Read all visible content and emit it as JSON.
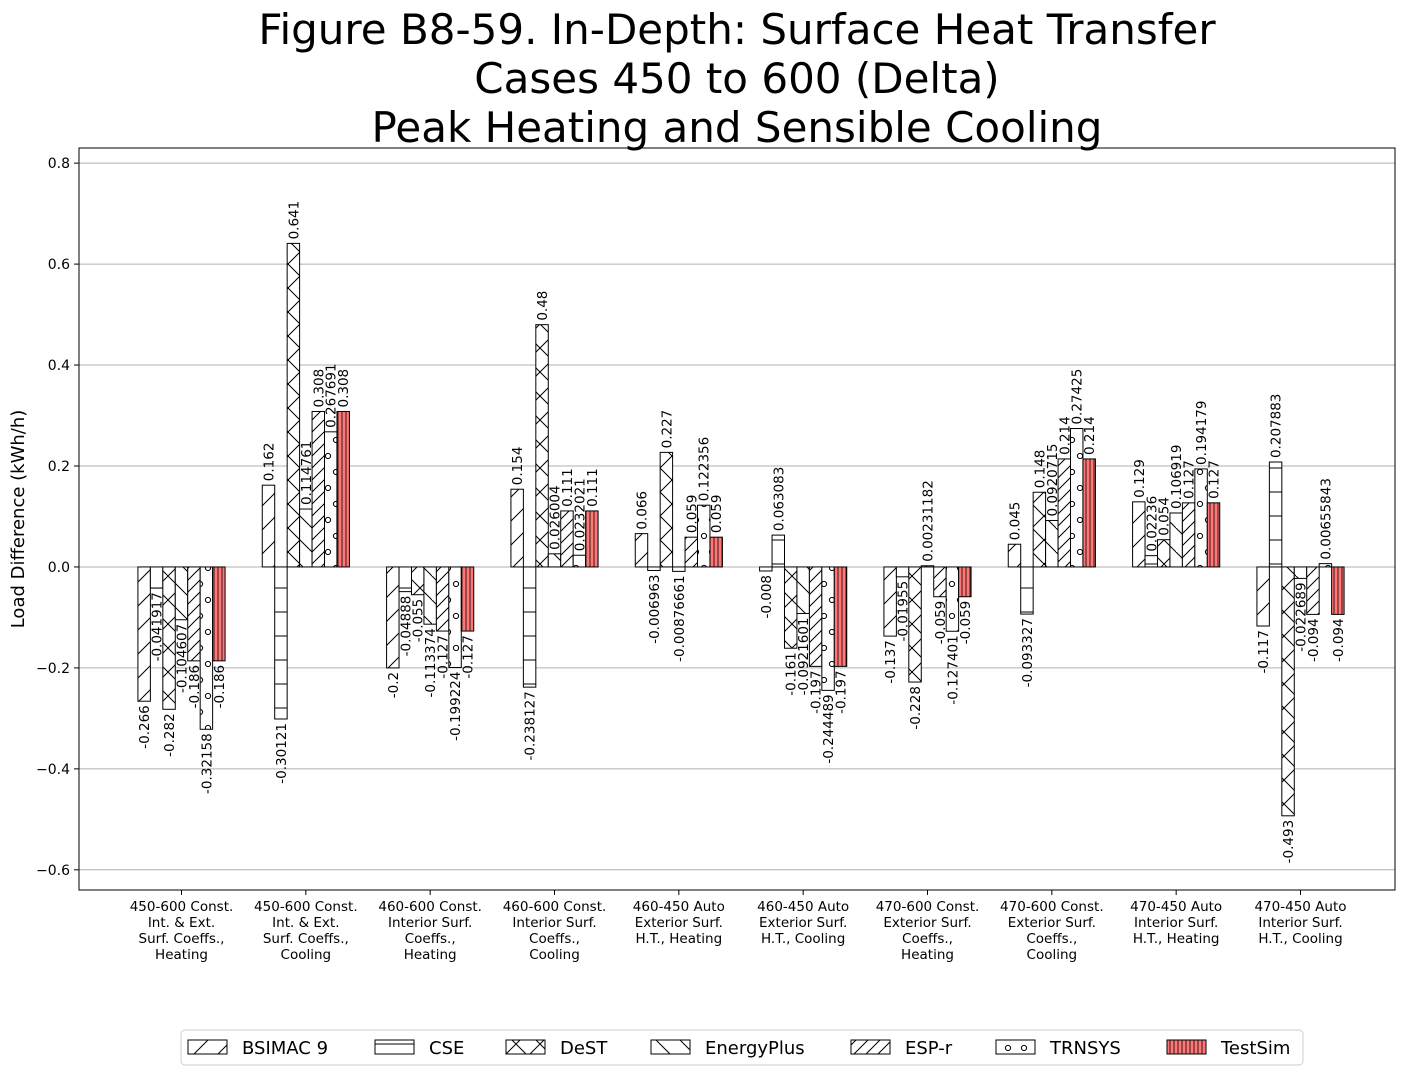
{
  "chart_data": {
    "type": "bar",
    "title": [
      "Figure B8-59. In-Depth: Surface Heat Transfer",
      "Cases 450 to 600 (Delta)",
      "Peak Heating and Sensible Cooling"
    ],
    "xlabel": "",
    "ylabel": "Load Difference (kWh/h)",
    "ylim": [
      -0.64,
      0.83
    ],
    "yticks": [
      -0.6,
      -0.4,
      -0.2,
      0.0,
      0.2,
      0.4,
      0.6,
      0.8
    ],
    "ytick_labels": [
      "−0.6",
      "−0.4",
      "−0.2",
      "0.0",
      "0.2",
      "0.4",
      "0.6",
      "0.8"
    ],
    "grid": "y",
    "legend_position": "bottom",
    "categories": [
      [
        "450-600 Const.",
        "Int. & Ext.",
        "Surf. Coeffs.,",
        "Heating"
      ],
      [
        "450-600 Const.",
        "Int. & Ext.",
        "Surf. Coeffs.,",
        "Cooling"
      ],
      [
        "460-600 Const.",
        "Interior Surf.",
        "Coeffs.,",
        "Heating"
      ],
      [
        "460-600 Const.",
        "Interior Surf.",
        "Coeffs.,",
        "Cooling"
      ],
      [
        "460-450 Auto",
        "Exterior Surf.",
        "H.T., Heating"
      ],
      [
        "460-450 Auto",
        "Exterior Surf.",
        "H.T., Cooling"
      ],
      [
        "470-600 Const.",
        "Exterior Surf.",
        "Coeffs.,",
        "Heating"
      ],
      [
        "470-600 Const.",
        "Exterior Surf.",
        "Coeffs.,",
        "Cooling"
      ],
      [
        "470-450 Auto",
        "Interior Surf.",
        "H.T., Heating"
      ],
      [
        "470-450 Auto",
        "Interior Surf.",
        "H.T., Cooling"
      ]
    ],
    "series": [
      {
        "name": "BSIMAC 9",
        "pattern": "slash",
        "color": "#ffffff",
        "values": [
          -0.266,
          0.162,
          -0.2,
          0.154,
          0.066,
          -0.008,
          -0.137,
          0.045,
          0.129,
          -0.117
        ],
        "labels": [
          "-0.266",
          "0.162",
          "-0.2",
          "0.154",
          "0.066",
          "-0.008",
          "-0.137",
          "0.045",
          "0.129",
          "-0.117"
        ]
      },
      {
        "name": "CSE",
        "pattern": "hline",
        "color": "#ffffff",
        "values": [
          -0.041917,
          -0.30121,
          -0.04888,
          -0.238127,
          -0.006963,
          0.063083,
          -0.01955,
          -0.093327,
          0.02236,
          0.207883
        ],
        "labels": [
          "-0.041917",
          "-0.30121",
          "-0.04888",
          "-0.238127",
          "-0.006963",
          "0.063083",
          "-0.01955",
          "-0.093327",
          "0.02236",
          "0.207883"
        ]
      },
      {
        "name": "DeST",
        "pattern": "cross",
        "color": "#ffffff",
        "values": [
          -0.282,
          0.641,
          -0.055,
          0.48,
          0.227,
          -0.161,
          -0.228,
          0.148,
          0.054,
          -0.493
        ],
        "labels": [
          "-0.282",
          "0.641",
          "-0.055",
          "0.48",
          "0.227",
          "-0.161",
          "-0.228",
          "0.148",
          "0.054",
          "-0.493"
        ]
      },
      {
        "name": "EnergyPlus",
        "pattern": "backslash",
        "color": "#ffffff",
        "values": [
          -0.104607,
          0.114761,
          -0.113374,
          0.026004,
          -0.00876661,
          -0.0921601,
          0.00231182,
          0.0920715,
          0.106919,
          -0.022689
        ],
        "labels": [
          "-0.104607",
          "0.114761",
          "-0.113374",
          "0.026004",
          "-0.00876661",
          "-0.0921601",
          "0.00231182",
          "0.0920715",
          "0.106919",
          "-0.022689"
        ]
      },
      {
        "name": "ESP-r",
        "pattern": "dslash",
        "color": "#ffffff",
        "values": [
          -0.186,
          0.308,
          -0.127,
          0.111,
          0.059,
          -0.197,
          -0.059,
          0.214,
          0.127,
          -0.094
        ],
        "labels": [
          "-0.186",
          "0.308",
          "-0.127",
          "0.111",
          "0.059",
          "-0.197",
          "-0.059",
          "0.214",
          "0.127",
          "-0.094"
        ]
      },
      {
        "name": "TRNSYS",
        "pattern": "circles",
        "color": "#ffffff",
        "values": [
          -0.32158,
          0.267691,
          -0.199224,
          0.0232021,
          0.122356,
          -0.244489,
          -0.127401,
          0.27425,
          0.194179,
          0.00655843
        ],
        "labels": [
          "-0.32158",
          "0.267691",
          "-0.199224",
          "0.0232021",
          "0.122356",
          "-0.244489",
          "-0.127401",
          "0.27425",
          "0.194179",
          "0.00655843"
        ]
      },
      {
        "name": "TestSim",
        "pattern": "vline",
        "color": "#ff7777",
        "values": [
          -0.186,
          0.308,
          -0.127,
          0.111,
          0.059,
          -0.197,
          -0.059,
          0.214,
          0.127,
          -0.094
        ],
        "labels": [
          "-0.186",
          "0.308",
          "-0.127",
          "0.111",
          "0.059",
          "-0.197",
          "-0.059",
          "0.214",
          "0.127",
          "-0.094"
        ]
      }
    ]
  }
}
